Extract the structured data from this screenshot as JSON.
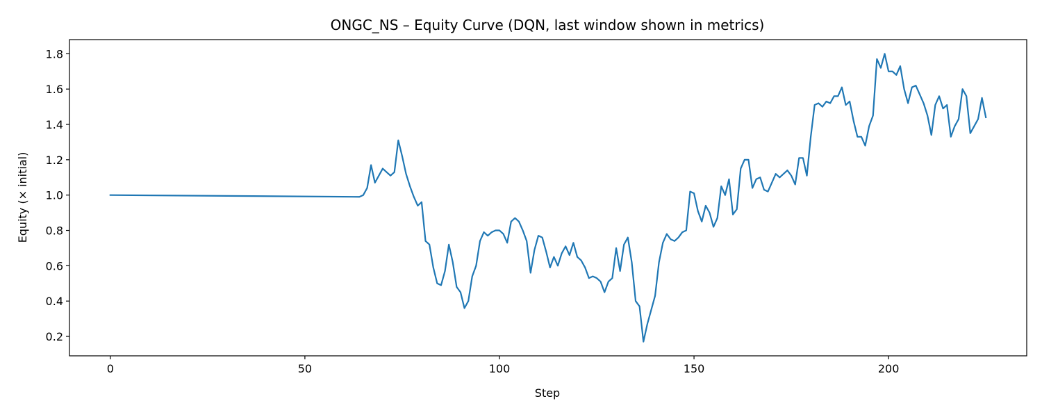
{
  "chart_data": {
    "type": "line",
    "title": "ONGC_NS – Equity Curve (DQN, last window shown in metrics)",
    "xlabel": "Step",
    "ylabel": "Equity (× initial)",
    "xlim": [
      -10.5,
      235.5
    ],
    "ylim": [
      0.09,
      1.88
    ],
    "xticks": [
      0,
      50,
      100,
      150,
      200
    ],
    "yticks": [
      0.2,
      0.4,
      0.6,
      0.8,
      1.0,
      1.2,
      1.4,
      1.6,
      1.8
    ],
    "ytick_labels": [
      "0.2",
      "0.4",
      "0.6",
      "0.8",
      "1.0",
      "1.2",
      "1.4",
      "1.6",
      "1.8"
    ],
    "grid": false,
    "legend": "none",
    "color": "#1f77b4",
    "series": [
      {
        "x": [
          0,
          64,
          65,
          66,
          67,
          68,
          69,
          70,
          71,
          72,
          73,
          74,
          75,
          76,
          77,
          78,
          79,
          80,
          81,
          82,
          83,
          84,
          85,
          86,
          87,
          88,
          89,
          90,
          91,
          92,
          93,
          94,
          95,
          96,
          97,
          98,
          99,
          100,
          101,
          102,
          103,
          104,
          105,
          106,
          107,
          108,
          109,
          110,
          111,
          112,
          113,
          114,
          115,
          116,
          117,
          118,
          119,
          120,
          121,
          122,
          123,
          124,
          125,
          126,
          127,
          128,
          129,
          130,
          131,
          132,
          133,
          134,
          135,
          136,
          137,
          138,
          139,
          140,
          141,
          142,
          143,
          144,
          145,
          146,
          147,
          148,
          149,
          150,
          151,
          152,
          153,
          154,
          155,
          156,
          157,
          158,
          159,
          160,
          161,
          162,
          163,
          164,
          165,
          166,
          167,
          168,
          169,
          170,
          171,
          172,
          173,
          174,
          175,
          176,
          177,
          178,
          179,
          180,
          181,
          182,
          183,
          184,
          185,
          186,
          187,
          188,
          189,
          190,
          191,
          192,
          193,
          194,
          195,
          196,
          197,
          198,
          199,
          200,
          201,
          202,
          203,
          204,
          205,
          206,
          207,
          208,
          209,
          210,
          211,
          212,
          213,
          214,
          215,
          216,
          217,
          218,
          219,
          220,
          221,
          222,
          223,
          224,
          225
        ],
        "y": [
          1.0,
          0.99,
          1.0,
          1.04,
          1.17,
          1.07,
          1.11,
          1.15,
          1.13,
          1.11,
          1.13,
          1.31,
          1.22,
          1.12,
          1.05,
          0.99,
          0.94,
          0.96,
          0.74,
          0.72,
          0.59,
          0.5,
          0.49,
          0.57,
          0.72,
          0.62,
          0.48,
          0.45,
          0.36,
          0.4,
          0.54,
          0.6,
          0.74,
          0.79,
          0.77,
          0.79,
          0.8,
          0.8,
          0.78,
          0.73,
          0.85,
          0.87,
          0.85,
          0.8,
          0.74,
          0.56,
          0.69,
          0.77,
          0.76,
          0.68,
          0.59,
          0.65,
          0.6,
          0.67,
          0.71,
          0.66,
          0.73,
          0.65,
          0.63,
          0.59,
          0.53,
          0.54,
          0.53,
          0.51,
          0.45,
          0.51,
          0.53,
          0.7,
          0.57,
          0.72,
          0.76,
          0.62,
          0.4,
          0.37,
          0.17,
          0.27,
          0.35,
          0.43,
          0.62,
          0.73,
          0.78,
          0.75,
          0.74,
          0.76,
          0.79,
          0.8,
          1.02,
          1.01,
          0.91,
          0.85,
          0.94,
          0.9,
          0.82,
          0.87,
          1.05,
          1.0,
          1.09,
          0.89,
          0.92,
          1.15,
          1.2,
          1.2,
          1.04,
          1.09,
          1.1,
          1.03,
          1.02,
          1.07,
          1.12,
          1.1,
          1.12,
          1.14,
          1.11,
          1.06,
          1.21,
          1.21,
          1.11,
          1.33,
          1.51,
          1.52,
          1.5,
          1.53,
          1.52,
          1.56,
          1.56,
          1.61,
          1.51,
          1.53,
          1.42,
          1.33,
          1.33,
          1.28,
          1.39,
          1.45,
          1.77,
          1.72,
          1.8,
          1.7,
          1.7,
          1.68,
          1.73,
          1.6,
          1.52,
          1.61,
          1.62,
          1.57,
          1.52,
          1.45,
          1.34,
          1.51,
          1.56,
          1.49,
          1.51,
          1.33,
          1.39,
          1.43,
          1.6,
          1.56,
          1.35,
          1.39,
          1.43,
          1.55,
          1.44
        ]
      }
    ]
  }
}
